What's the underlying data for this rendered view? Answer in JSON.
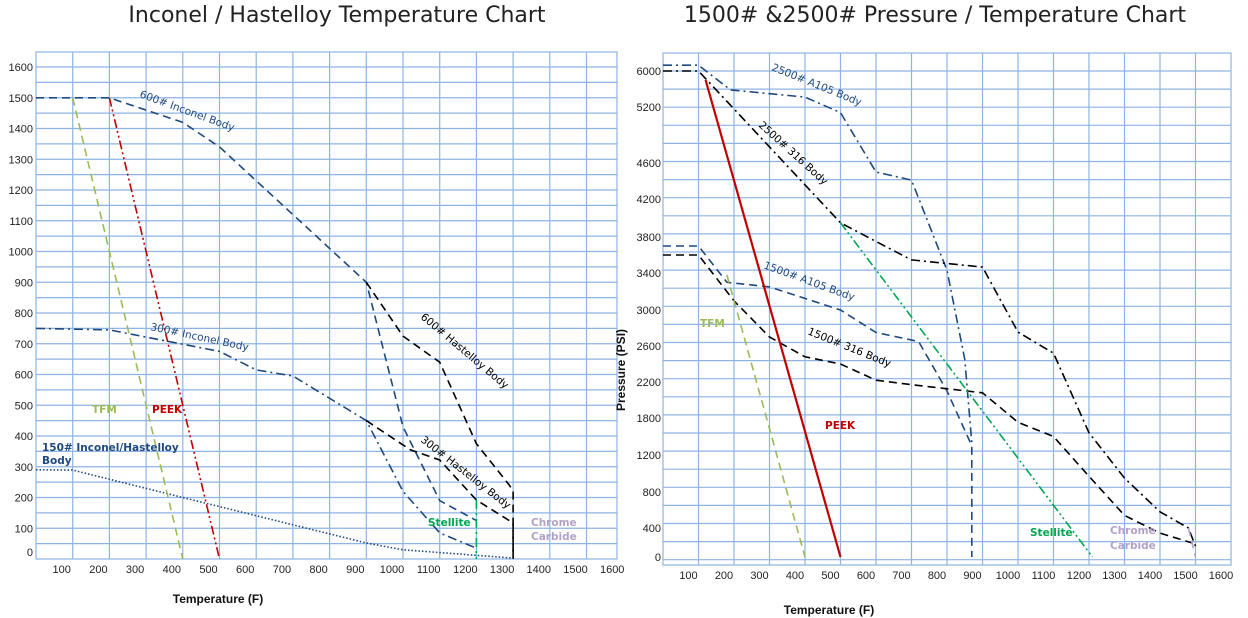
{
  "colors": {
    "grid": "#8eb4e3",
    "navy": "#1f497d",
    "black": "#000000",
    "tfm": "#9bbb59",
    "peek": "#c00000",
    "stellite": "#00a651",
    "chrome": "#b3a2c7"
  },
  "chart_data": [
    {
      "type": "line",
      "title": "Inconel / Hastelloy  Temperature Chart",
      "xlabel": "Temperature (F)",
      "ylabel": "",
      "xlim": [
        0,
        1600
      ],
      "ylim": [
        0,
        1600
      ],
      "grid": true,
      "x_ticks": [
        "100",
        "200",
        "300",
        "400",
        "500",
        "600",
        "700",
        "800",
        "900",
        "1000",
        "1100",
        "1200",
        "1300",
        "1400",
        "1500",
        "1600"
      ],
      "y_ticks": [
        "0",
        "100",
        "200",
        "300",
        "400",
        "500",
        "600",
        "700",
        "800",
        "900",
        "1000",
        "1100",
        "1200",
        "1300",
        "1400",
        "1500",
        "1600"
      ],
      "series": [
        {
          "name": "600# Inconel Body",
          "color": "#1f497d",
          "style": "dashed",
          "points": [
            [
              0,
              1500
            ],
            [
              200,
              1500
            ],
            [
              400,
              1420
            ],
            [
              500,
              1340
            ],
            [
              900,
              900
            ],
            [
              1000,
              430
            ],
            [
              1100,
              190
            ],
            [
              1200,
              125
            ]
          ]
        },
        {
          "name": "600# Hastelloy Body",
          "color": "#000000",
          "style": "dashed",
          "points": [
            [
              900,
              900
            ],
            [
              1000,
              725
            ],
            [
              1100,
              640
            ],
            [
              1200,
              375
            ],
            [
              1290,
              240
            ],
            [
              1300,
              220
            ],
            [
              1300,
              0
            ]
          ]
        },
        {
          "name": "300# Inconel Body",
          "color": "#1f497d",
          "style": "dashdot",
          "points": [
            [
              0,
              750
            ],
            [
              200,
              745
            ],
            [
              500,
              675
            ],
            [
              600,
              615
            ],
            [
              700,
              595
            ],
            [
              900,
              450
            ],
            [
              1000,
              220
            ],
            [
              1100,
              85
            ],
            [
              1200,
              35
            ]
          ]
        },
        {
          "name": "300# Hastelloy Body",
          "color": "#000000",
          "style": "dashed",
          "points": [
            [
              900,
              450
            ],
            [
              1020,
              355
            ],
            [
              1100,
              322
            ],
            [
              1200,
              192
            ],
            [
              1300,
              117
            ],
            [
              1300,
              0
            ]
          ]
        },
        {
          "name": "150# Inconel/Hastelloy Body",
          "color": "#1f497d",
          "style": "dotted",
          "points": [
            [
              0,
              290
            ],
            [
              100,
              289
            ],
            [
              400,
              200
            ],
            [
              900,
              52
            ],
            [
              1000,
              30
            ],
            [
              1300,
              3
            ]
          ]
        },
        {
          "name": "TFM",
          "color": "#9bbb59",
          "style": "dashed",
          "points": [
            [
              100,
              1500
            ],
            [
              400,
              0
            ]
          ]
        },
        {
          "name": "PEEK",
          "color": "#c00000",
          "style": "dashdotdot",
          "points": [
            [
              200,
              1500
            ],
            [
              500,
              0
            ]
          ]
        },
        {
          "name": "Stellite",
          "color": "#00a651",
          "style": "dashdot",
          "points": [
            [
              1200,
              192
            ],
            [
              1200,
              0
            ]
          ]
        }
      ],
      "annotations": {
        "inconel600": "600# Inconel Body",
        "inconel300": "300# Inconel Body",
        "hastelloy600": "600# Hastelloy Body",
        "hastelloy300": "300# Hastelloy Body",
        "body150_line1": "150# Inconel/Hastelloy",
        "body150_line2": "Body",
        "tfm": "TFM",
        "peek": "PEEK",
        "stellite": "Stellite",
        "chrome_line1": "Chrome",
        "chrome_line2": "Carbide"
      }
    },
    {
      "type": "line",
      "title": "1500# &2500# Pressure / Temperature Chart",
      "xlabel": "Temperature (F)",
      "ylabel": "Pressure (PSI)",
      "xlim": [
        0,
        1600
      ],
      "ylim": [
        0,
        6000
      ],
      "grid": true,
      "x_ticks": [
        "100",
        "200",
        "300",
        "400",
        "500",
        "600",
        "700",
        "800",
        "900",
        "1000",
        "1100",
        "1200",
        "1300",
        "1400",
        "1500",
        "1600"
      ],
      "y_ticks": [
        "0",
        "400",
        "800",
        "1200",
        "1800",
        "2200",
        "2600",
        "3000",
        "3400",
        "3800",
        "4200",
        "4600",
        "5200",
        "6000"
      ],
      "series": [
        {
          "name": "2500# A105 Body",
          "color": "#1f497d",
          "style": "dashdot",
          "points": [
            [
              0,
              6130
            ],
            [
              100,
              6130
            ],
            [
              190,
              5580
            ],
            [
              400,
              5420
            ],
            [
              500,
              5140
            ],
            [
              600,
              4500
            ],
            [
              700,
              4410
            ],
            [
              800,
              3430
            ],
            [
              850,
              2450
            ],
            [
              870,
              1400
            ]
          ]
        },
        {
          "name": "2500# 316 Body",
          "color": "#000000",
          "style": "dashdot",
          "points": [
            [
              0,
              6000
            ],
            [
              100,
              6000
            ],
            [
              500,
              3950
            ],
            [
              600,
              3750
            ],
            [
              700,
              3545
            ],
            [
              900,
              3465
            ],
            [
              1000,
              2755
            ],
            [
              1100,
              2520
            ],
            [
              1200,
              1560
            ],
            [
              1300,
              950
            ],
            [
              1400,
              580
            ],
            [
              1480,
              400
            ],
            [
              1500,
              150
            ]
          ]
        },
        {
          "name": "1500# A105 Body",
          "color": "#1f497d",
          "style": "dashed",
          "points": [
            [
              0,
              3700
            ],
            [
              100,
              3700
            ],
            [
              180,
              3300
            ],
            [
              300,
              3250
            ],
            [
              500,
              3000
            ],
            [
              600,
              2750
            ],
            [
              720,
              2650
            ],
            [
              800,
              2100
            ],
            [
              870,
              1350
            ],
            [
              870,
              0
            ]
          ]
        },
        {
          "name": "1500# 316 Body",
          "color": "#000000",
          "style": "dashed",
          "points": [
            [
              0,
              3600
            ],
            [
              100,
              3600
            ],
            [
              200,
              3100
            ],
            [
              300,
              2700
            ],
            [
              400,
              2480
            ],
            [
              500,
              2400
            ],
            [
              600,
              2220
            ],
            [
              700,
              2170
            ],
            [
              900,
              2080
            ],
            [
              1000,
              1730
            ],
            [
              1100,
              1500
            ],
            [
              1200,
              970
            ],
            [
              1300,
              540
            ],
            [
              1400,
              330
            ],
            [
              1500,
              180
            ]
          ]
        },
        {
          "name": "TFM",
          "color": "#9bbb59",
          "style": "dashed",
          "points": [
            [
              180,
              3380
            ],
            [
              400,
              0
            ]
          ]
        },
        {
          "name": "PEEK",
          "color": "#c00000",
          "style": "solid",
          "points": [
            [
              120,
              5800
            ],
            [
              500,
              0
            ]
          ]
        },
        {
          "name": "Stellite",
          "color": "#00a651",
          "style": "dashdotdot",
          "points": [
            [
              500,
              3950
            ],
            [
              1210,
              0
            ]
          ]
        },
        {
          "name": "Chrome Carbide",
          "color": "#b3a2c7",
          "style": "dashed",
          "points": [
            [
              1480,
              400
            ],
            [
              1500,
              0
            ]
          ]
        }
      ],
      "annotations": {
        "a105_2500": "2500# A105 Body",
        "s316_2500": "2500# 316 Body",
        "a105_1500": "1500# A105 Body",
        "s316_1500": "1500# 316 Body",
        "tfm": "TFM",
        "peek": "PEEK",
        "stellite": "Stellite",
        "chrome_line1": "Chrome",
        "chrome_line2": "Carbide"
      }
    }
  ]
}
